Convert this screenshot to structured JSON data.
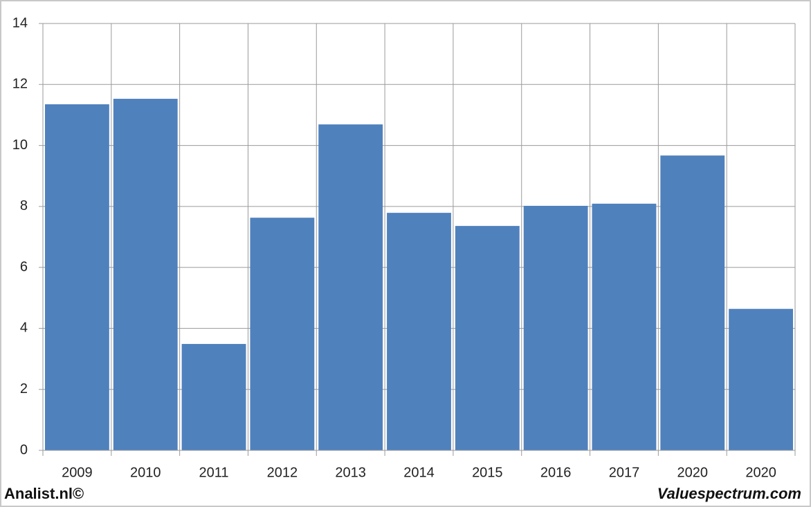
{
  "chart_data": {
    "type": "bar",
    "categories": [
      "2009",
      "2010",
      "2011",
      "2012",
      "2013",
      "2014",
      "2015",
      "2016",
      "2017",
      "2020",
      "2020"
    ],
    "values": [
      11.35,
      11.53,
      3.49,
      7.63,
      10.69,
      7.79,
      7.36,
      8.02,
      8.09,
      9.67,
      4.64
    ],
    "color": "#4f81bd",
    "ylim": [
      0,
      14
    ],
    "yticks": [
      0,
      2,
      4,
      6,
      8,
      10,
      12,
      14
    ],
    "grid": true,
    "source_left": "Analist.nl©",
    "source_right": "Valuespectrum.com"
  }
}
